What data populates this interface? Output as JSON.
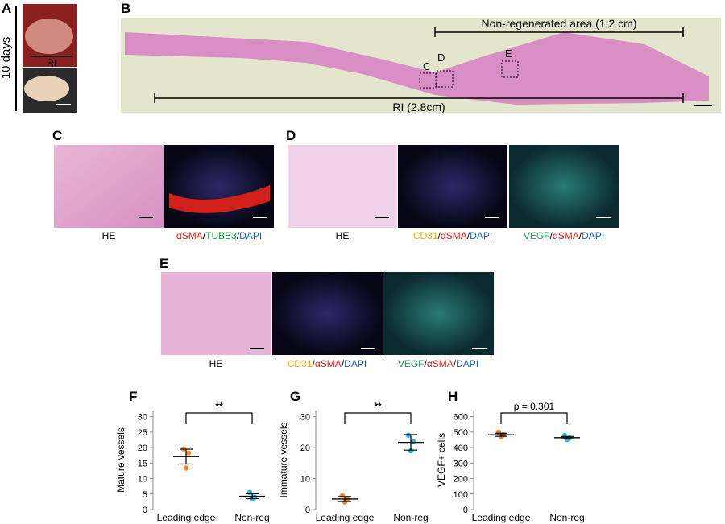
{
  "panel_labels": [
    "A",
    "B",
    "C",
    "D",
    "E",
    "F",
    "G",
    "H"
  ],
  "panel_a": {
    "time": "10 days",
    "region": "RI"
  },
  "panel_b": {
    "area_label": "Non-regenerated area (1.2 cm)",
    "ri_label": "RI (2.8cm)",
    "boxes": [
      "C",
      "D",
      "E"
    ]
  },
  "captions": {
    "c": [
      [
        {
          "text": "HE",
          "color": "#000000"
        }
      ],
      [
        {
          "text": "αSMA",
          "color": "#e0201b"
        },
        {
          "text": "/",
          "color": "#000000"
        },
        {
          "text": "TUBB3",
          "color": "#1aa04a"
        },
        {
          "text": "/",
          "color": "#000000"
        },
        {
          "text": "DAPI",
          "color": "#1f5fc0"
        }
      ]
    ],
    "d": [
      [
        {
          "text": "HE",
          "color": "#000000"
        }
      ],
      [
        {
          "text": "CD31",
          "color": "#f2a60c"
        },
        {
          "text": "/",
          "color": "#000000"
        },
        {
          "text": "αSMA",
          "color": "#e0201b"
        },
        {
          "text": "/",
          "color": "#000000"
        },
        {
          "text": "DAPI",
          "color": "#1f5fc0"
        }
      ],
      [
        {
          "text": "VEGF",
          "color": "#1aa04a"
        },
        {
          "text": "/",
          "color": "#000000"
        },
        {
          "text": "αSMA",
          "color": "#e0201b"
        },
        {
          "text": "/",
          "color": "#000000"
        },
        {
          "text": "DAPI",
          "color": "#1f5fc0"
        }
      ]
    ],
    "e": [
      [
        {
          "text": "HE",
          "color": "#000000"
        }
      ],
      [
        {
          "text": "CD31",
          "color": "#f2a60c"
        },
        {
          "text": "/",
          "color": "#000000"
        },
        {
          "text": "αSMA",
          "color": "#e0201b"
        },
        {
          "text": "/",
          "color": "#000000"
        },
        {
          "text": "DAPI",
          "color": "#1f5fc0"
        }
      ],
      [
        {
          "text": "VEGF",
          "color": "#1aa04a"
        },
        {
          "text": "/",
          "color": "#000000"
        },
        {
          "text": "αSMA",
          "color": "#e0201b"
        },
        {
          "text": "/",
          "color": "#000000"
        },
        {
          "text": "DAPI",
          "color": "#1f5fc0"
        }
      ]
    ]
  },
  "chart_data": [
    {
      "type": "dot",
      "y_label": "Mature vessels",
      "categories": [
        "Leading edge",
        "Non-reg"
      ],
      "points": [
        [
          19.6,
          18.3,
          13.4
        ],
        [
          5.5,
          4.0,
          3.4
        ]
      ],
      "means": [
        17.1,
        4.3
      ],
      "errors": [
        2.4,
        0.8
      ],
      "colors": [
        "#f08a30",
        "#29b5e8"
      ],
      "annotation": "**",
      "ylim": [
        0,
        32
      ],
      "yticks": [
        0,
        5,
        10,
        15,
        20,
        25,
        30
      ]
    },
    {
      "type": "dot",
      "y_label": "Immature vessels",
      "categories": [
        "Leading edge",
        "Non-reg"
      ],
      "points": [
        [
          4.5,
          3.4,
          2.4
        ],
        [
          24.0,
          22.0,
          19.0
        ]
      ],
      "means": [
        3.4,
        21.7
      ],
      "errors": [
        0.8,
        2.5
      ],
      "colors": [
        "#f08a30",
        "#29b5e8"
      ],
      "annotation": "**",
      "ylim": [
        0,
        32
      ],
      "yticks": [
        0,
        10,
        20,
        30
      ]
    },
    {
      "type": "dot",
      "y_label": "VEGF+ cells",
      "categories": [
        "Leading edge",
        "Non-reg"
      ],
      "points": [
        [
          500,
          482,
          468
        ],
        [
          478,
          462,
          452
        ]
      ],
      "means": [
        483,
        464
      ],
      "errors": [
        10,
        8
      ],
      "colors": [
        "#f08a30",
        "#29b5e8"
      ],
      "annotation": "p = 0.301",
      "ylim": [
        0,
        640
      ],
      "yticks": [
        0,
        100,
        200,
        300,
        400,
        500,
        600
      ]
    }
  ]
}
